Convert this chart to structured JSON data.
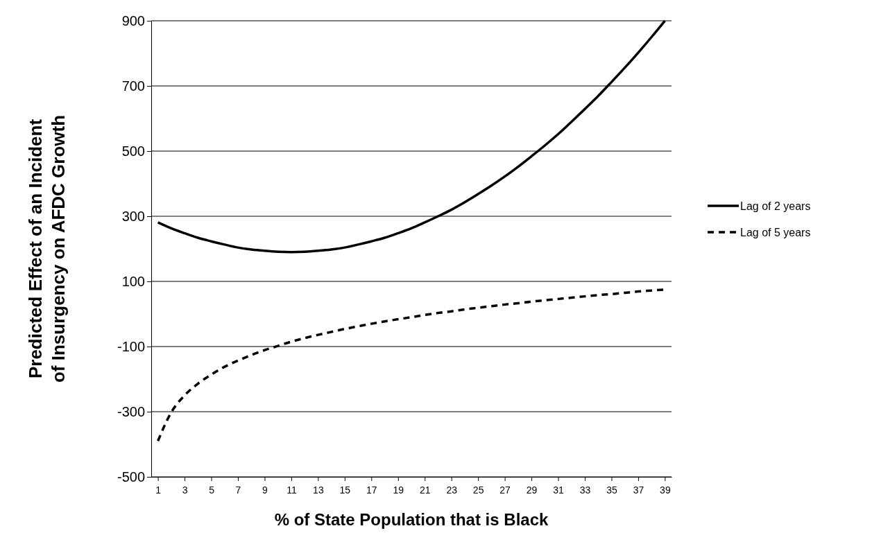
{
  "chart_data": {
    "type": "line",
    "xlabel": "% of State Population that is Black",
    "ylabel": "Predicted Effect of an Incident\nof Insurgency on AFDC Growth",
    "x": [
      1,
      2,
      3,
      4,
      5,
      6,
      7,
      8,
      9,
      10,
      11,
      12,
      13,
      14,
      15,
      16,
      17,
      18,
      19,
      20,
      21,
      22,
      23,
      24,
      25,
      26,
      27,
      28,
      29,
      30,
      31,
      32,
      33,
      34,
      35,
      36,
      37,
      38,
      39
    ],
    "xlim": [
      0.5,
      39.5
    ],
    "xticks": [
      1,
      3,
      5,
      7,
      9,
      11,
      13,
      15,
      17,
      19,
      21,
      23,
      25,
      27,
      29,
      31,
      33,
      35,
      37,
      39
    ],
    "ylim": [
      -500,
      900
    ],
    "yticks": [
      -500,
      -300,
      -100,
      100,
      300,
      500,
      700,
      900
    ],
    "grid": "y",
    "legend": "right",
    "marker": "none",
    "series": [
      {
        "name": "Lag of 2 years",
        "color": "#000000",
        "line_style": "solid",
        "values": [
          281,
          263,
          248,
          234,
          223,
          213,
          204,
          198,
          194,
          191,
          190,
          191,
          194,
          198,
          204,
          213,
          223,
          234,
          248,
          263,
          281,
          300,
          320,
          343,
          368,
          394,
          422,
          452,
          484,
          517,
          552,
          590,
          629,
          669,
          712,
          756,
          802,
          850,
          900
        ]
      },
      {
        "name": "Lag of 5 years",
        "color": "#000000",
        "line_style": "dashed",
        "values": [
          -390,
          -302,
          -250,
          -214,
          -186,
          -162,
          -143,
          -126,
          -111,
          -98,
          -85,
          -74,
          -64,
          -55,
          -46,
          -38,
          -30,
          -23,
          -16,
          -10,
          -3,
          3,
          8,
          14,
          19,
          24,
          29,
          33,
          38,
          42,
          46,
          50,
          54,
          58,
          61,
          65,
          69,
          72,
          75
        ]
      }
    ]
  }
}
